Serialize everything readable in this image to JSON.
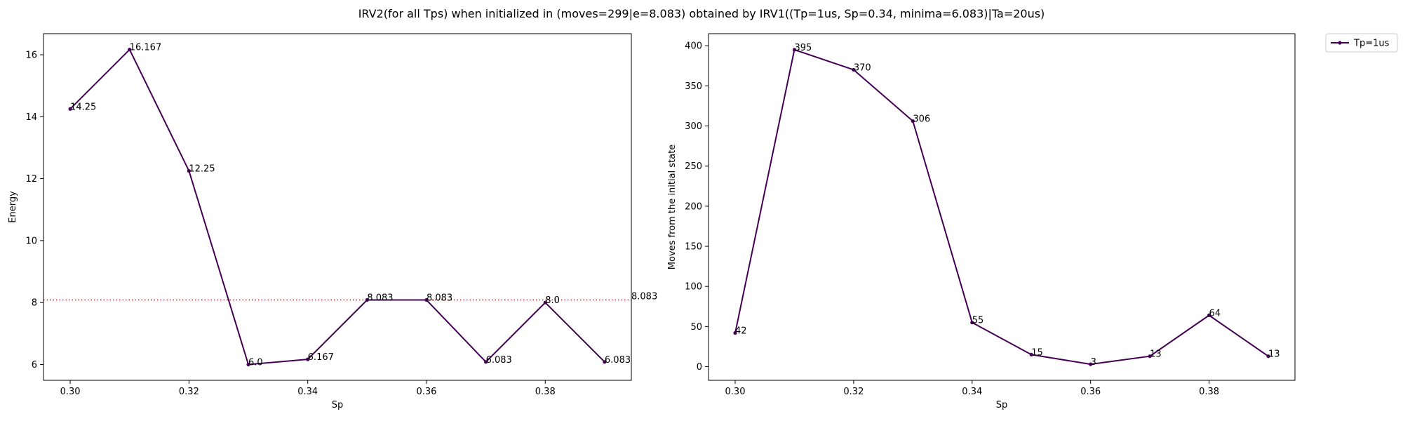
{
  "figure": {
    "title": "IRV2(for all Tps) when initialized in (moves=299|e=8.083) obtained by IRV1((Tp=1us, Sp=0.34, minima=6.083)|Ta=20us)"
  },
  "colors": {
    "series": "#440154",
    "reference_line": "#ff0000",
    "axes": "#000000",
    "background": "#ffffff"
  },
  "chart_data": [
    {
      "type": "line",
      "xlabel": "Sp",
      "ylabel": "Energy",
      "x": [
        0.3,
        0.31,
        0.32,
        0.33,
        0.34,
        0.35,
        0.36,
        0.37,
        0.38,
        0.39
      ],
      "series": [
        {
          "values": [
            14.25,
            16.167,
            12.25,
            6.0,
            6.167,
            8.083,
            8.083,
            6.083,
            8.0,
            6.083
          ],
          "labels": [
            "14.25",
            "16.167",
            "12.25",
            "6.0",
            "6.167",
            "8.083",
            "8.083",
            "6.083",
            "8.0",
            "6.083"
          ],
          "marker": "dot"
        }
      ],
      "reference_line": {
        "y": 8.083,
        "style": "dotted",
        "label": "8.083"
      },
      "xlim": [
        0.2955,
        0.3945
      ],
      "ylim": [
        5.49,
        16.68
      ],
      "xticks": [
        "0.30",
        "0.32",
        "0.34",
        "0.36",
        "0.38"
      ],
      "xtick_values": [
        0.3,
        0.32,
        0.34,
        0.36,
        0.38
      ],
      "yticks": [
        "6",
        "8",
        "10",
        "12",
        "14",
        "16"
      ],
      "ytick_values": [
        6,
        8,
        10,
        12,
        14,
        16
      ],
      "grid": false
    },
    {
      "type": "line",
      "xlabel": "Sp",
      "ylabel": "Moves from the initial state",
      "x": [
        0.3,
        0.31,
        0.32,
        0.33,
        0.34,
        0.35,
        0.36,
        0.37,
        0.38,
        0.39
      ],
      "series": [
        {
          "name": "Tp=1us",
          "values": [
            42,
            395,
            370,
            306,
            55,
            15,
            3,
            13,
            64,
            13
          ],
          "labels": [
            "42",
            "395",
            "370",
            "306",
            "55",
            "15",
            "3",
            "13",
            "64",
            "13"
          ],
          "marker": "dot"
        }
      ],
      "xlim": [
        0.2955,
        0.3945
      ],
      "ylim": [
        -17,
        415
      ],
      "xticks": [
        "0.30",
        "0.32",
        "0.34",
        "0.36",
        "0.38"
      ],
      "xtick_values": [
        0.3,
        0.32,
        0.34,
        0.36,
        0.38
      ],
      "yticks": [
        "0",
        "50",
        "100",
        "150",
        "200",
        "250",
        "300",
        "350",
        "400"
      ],
      "ytick_values": [
        0,
        50,
        100,
        150,
        200,
        250,
        300,
        350,
        400
      ],
      "legend": {
        "position": "outside-top-right",
        "entries": [
          "Tp=1us"
        ]
      },
      "grid": false
    }
  ]
}
